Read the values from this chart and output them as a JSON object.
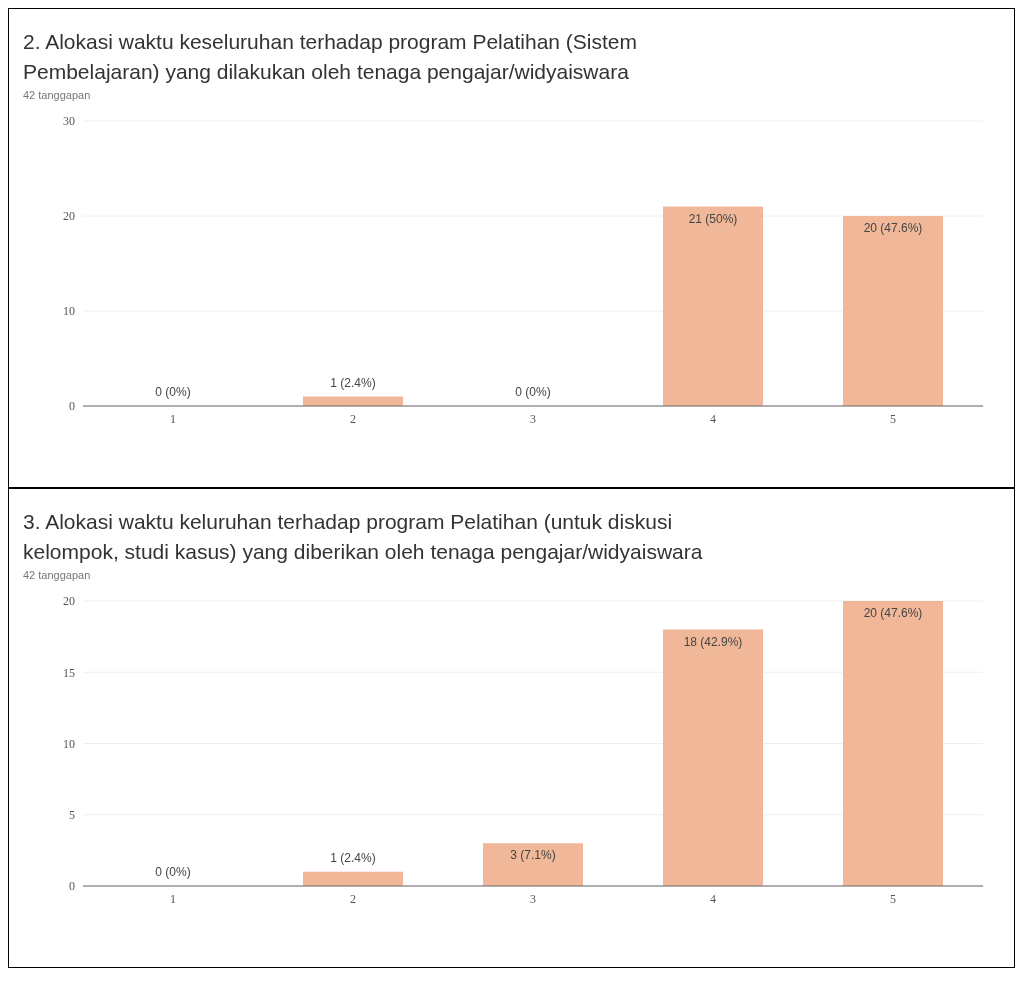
{
  "chart_data": [
    {
      "type": "bar",
      "title": "2. Alokasi waktu keseluruhan terhadap program Pelatihan (Sistem Pembelajaran) yang dilakukan oleh tenaga pengajar/widyaiswara",
      "subtitle": "42 tanggapan",
      "categories": [
        "1",
        "2",
        "3",
        "4",
        "5"
      ],
      "values": [
        0,
        1,
        0,
        21,
        20
      ],
      "value_labels": [
        "0 (0%)",
        "1 (2.4%)",
        "0 (0%)",
        "21 (50%)",
        "20 (47.6%)"
      ],
      "color": "#f0b899",
      "ylim": [
        0,
        30
      ],
      "yticks": [
        0,
        10,
        20,
        30
      ],
      "grid": "y"
    },
    {
      "type": "bar",
      "title": "3. Alokasi waktu keluruhan terhadap program Pelatihan (untuk diskusi kelompok, studi kasus) yang diberikan oleh tenaga pengajar/widyaiswara",
      "subtitle": "42 tanggapan",
      "categories": [
        "1",
        "2",
        "3",
        "4",
        "5"
      ],
      "values": [
        0,
        1,
        3,
        18,
        20
      ],
      "value_labels": [
        "0 (0%)",
        "1 (2.4%)",
        "3 (7.1%)",
        "18 (42.9%)",
        "20 (47.6%)"
      ],
      "color": "#f0b899",
      "ylim": [
        0,
        20
      ],
      "yticks": [
        0,
        5,
        10,
        15,
        20
      ],
      "grid": "y"
    }
  ]
}
